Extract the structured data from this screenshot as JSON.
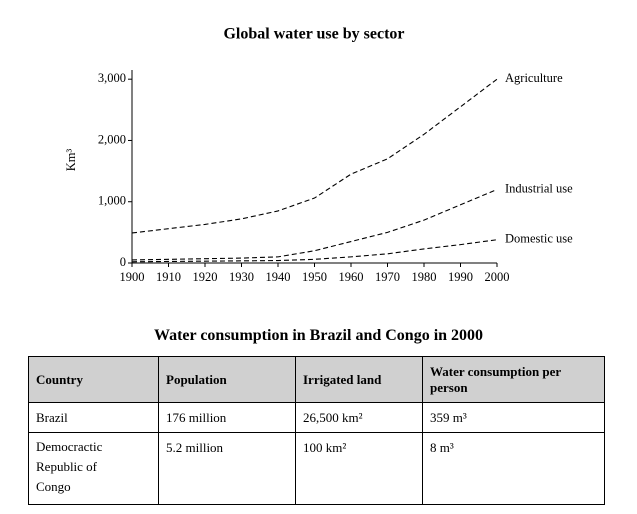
{
  "chart_data": {
    "type": "line",
    "title": "Global water use by sector",
    "y_label": "Km³",
    "x": [
      1900,
      1910,
      1920,
      1930,
      1940,
      1950,
      1960,
      1970,
      1980,
      1990,
      2000
    ],
    "series": [
      {
        "name": "Agriculture",
        "color": "#000000",
        "line_style": "dashed",
        "values": [
          490,
          560,
          630,
          720,
          850,
          1060,
          1450,
          1700,
          2100,
          2550,
          3000
        ]
      },
      {
        "name": "Industrial use",
        "color": "#000000",
        "line_style": "dashed",
        "values": [
          50,
          60,
          70,
          80,
          100,
          200,
          350,
          500,
          700,
          950,
          1200
        ]
      },
      {
        "name": "Domestic use",
        "color": "#000000",
        "line_style": "dashed",
        "values": [
          20,
          25,
          30,
          35,
          40,
          60,
          100,
          150,
          230,
          300,
          380
        ]
      }
    ],
    "xlim": [
      1900,
      2000
    ],
    "xticks": [
      1900,
      1910,
      1920,
      1930,
      1940,
      1950,
      1960,
      1970,
      1980,
      1990,
      2000
    ],
    "ylim": [
      0,
      3150
    ],
    "yticks": [
      0,
      {
        "value": 1000,
        "label": "1,000"
      },
      {
        "value": 2000,
        "label": "2,000"
      },
      {
        "value": 3000,
        "label": "3,000"
      }
    ],
    "grid": false
  },
  "table": {
    "title": "Water consumption in Brazil and Congo in 2000",
    "header": [
      "Country",
      "Population",
      "Irrigated land",
      "Water consumption per person"
    ],
    "rows": [
      [
        "Brazil",
        "176 million",
        "26,500 km²",
        "359 m³"
      ],
      [
        "Democractic Republic of Congo",
        "5.2 million",
        "100 km²",
        "8 m³"
      ]
    ]
  }
}
